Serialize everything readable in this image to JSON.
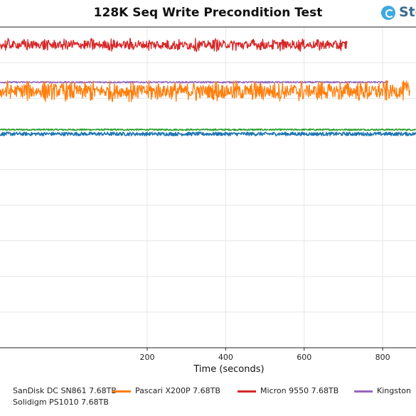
{
  "chart_data": {
    "type": "line",
    "title": "128K Seq Write Precondition Test",
    "xlabel": "Time (seconds)",
    "ylabel": "",
    "xlim": [
      -175,
      885
    ],
    "ylim": [
      0,
      9
    ],
    "x_ticks": [
      200,
      400,
      600,
      800
    ],
    "grid": true,
    "legend_position": "bottom",
    "series": [
      {
        "name": "SanDisk DC SN861 7.68TB",
        "color": "#1f77b4",
        "x_end": 885,
        "y_mean": 6.0,
        "y_noise": 0.05
      },
      {
        "name": "Pascari X200P 7.68TB",
        "color": "#ff7f0e",
        "x_end": 870,
        "y_mean": 7.2,
        "y_noise": 0.25
      },
      {
        "name": "Micron 9550 7.68TB",
        "color": "#d62728",
        "x_end": 710,
        "y_mean": 8.5,
        "y_noise": 0.15
      },
      {
        "name": "Kingston",
        "color": "#9467bd",
        "x_end": 815,
        "y_mean": 7.45,
        "y_noise": 0.02
      },
      {
        "name": "Solidigm PS1010 7.68TB",
        "color": "#2ca02c",
        "x_end": 885,
        "y_mean": 6.12,
        "y_noise": 0.02
      }
    ]
  },
  "logo": {
    "text": "Sto"
  }
}
